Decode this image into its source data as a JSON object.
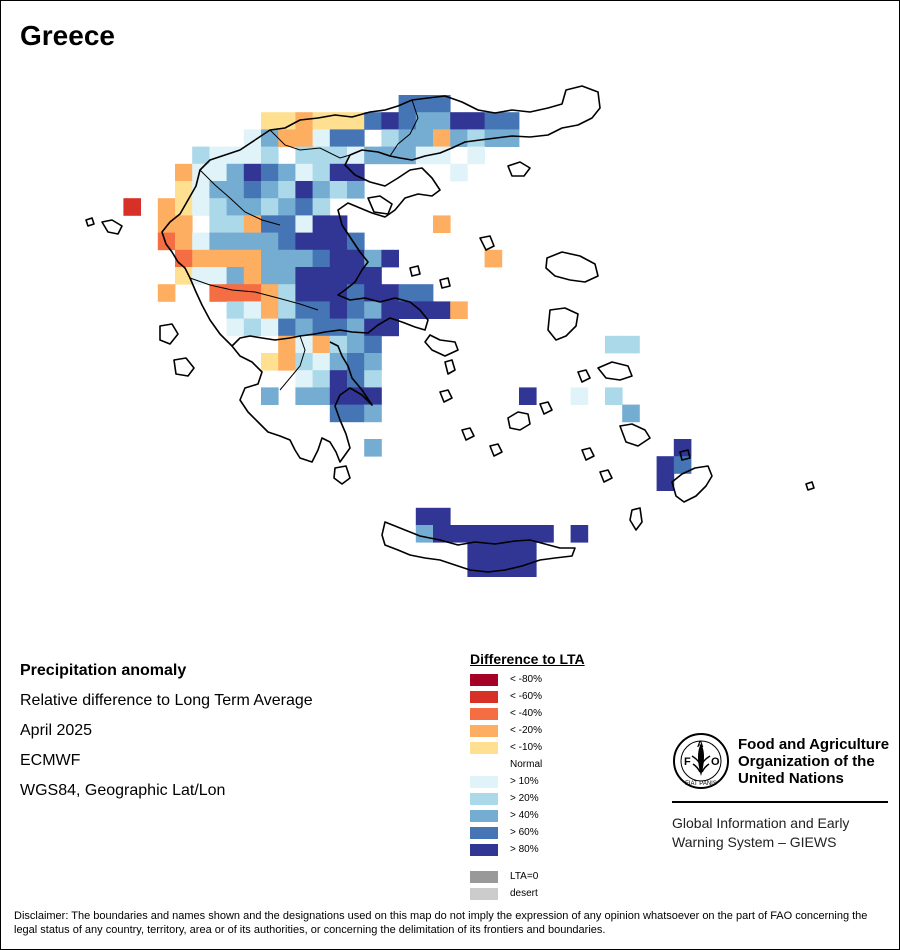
{
  "title": "Greece",
  "info": {
    "heading": "Precipitation anomaly",
    "line1": "Relative difference to Long Term Average",
    "line2": "April 2025",
    "line3": "ECMWF",
    "line4": "WGS84, Geographic Lat/Lon"
  },
  "legend": {
    "title": "Difference to LTA",
    "items": [
      {
        "label": "< -80%",
        "color": "#a50026"
      },
      {
        "label": "< -60%",
        "color": "#d73027"
      },
      {
        "label": "< -40%",
        "color": "#f46d43"
      },
      {
        "label": "< -20%",
        "color": "#fdae61"
      },
      {
        "label": "< -10%",
        "color": "#fee090"
      },
      {
        "label": "Normal",
        "color": "#ffffff"
      },
      {
        "label": "> 10%",
        "color": "#e0f3f8"
      },
      {
        "label": "> 20%",
        "color": "#abd9e9"
      },
      {
        "label": "> 40%",
        "color": "#74add1"
      },
      {
        "label": "> 60%",
        "color": "#4575b4"
      },
      {
        "label": "> 80%",
        "color": "#313695"
      }
    ],
    "extra": [
      {
        "label": "LTA=0",
        "color": "#999999"
      },
      {
        "label": "desert",
        "color": "#cccccc"
      }
    ]
  },
  "fao": {
    "name": "Food and Agriculture Organization of the United Nations",
    "logo_text": "FAO",
    "motto": "FIAT PANIS",
    "giews": "Global Information and Early Warning System – GIEWS"
  },
  "disclaimer": "Disclaimer: The boundaries and names shown and the designations used on this map do not imply the expression of any opinion whatsoever on the part of FAO concerning the legal status of any country, territory, area or of its authorities, or concerning the delimitation of its frontiers and boundaries.",
  "map_grid": [
    {
      "row": 0,
      "cells": [
        [
          18,
          9
        ],
        [
          19,
          9
        ],
        [
          20,
          9
        ]
      ]
    },
    {
      "row": 1,
      "cells": [
        [
          10,
          4
        ],
        [
          11,
          4
        ],
        [
          12,
          3
        ],
        [
          13,
          4
        ],
        [
          14,
          4
        ],
        [
          15,
          4
        ],
        [
          16,
          9
        ],
        [
          17,
          10
        ],
        [
          18,
          9
        ],
        [
          19,
          8
        ],
        [
          20,
          8
        ],
        [
          21,
          10
        ],
        [
          22,
          10
        ],
        [
          23,
          9
        ],
        [
          24,
          9
        ]
      ]
    },
    {
      "row": 2,
      "cells": [
        [
          9,
          6
        ],
        [
          10,
          8
        ],
        [
          11,
          3
        ],
        [
          12,
          3
        ],
        [
          13,
          6
        ],
        [
          14,
          9
        ],
        [
          15,
          9
        ],
        [
          16,
          5
        ],
        [
          17,
          7
        ],
        [
          18,
          8
        ],
        [
          19,
          8
        ],
        [
          20,
          3
        ],
        [
          21,
          8
        ],
        [
          22,
          7
        ],
        [
          23,
          8
        ],
        [
          24,
          8
        ]
      ]
    },
    {
      "row": 3,
      "cells": [
        [
          6,
          7
        ],
        [
          7,
          6
        ],
        [
          8,
          6
        ],
        [
          9,
          6
        ],
        [
          10,
          7
        ],
        [
          11,
          5
        ],
        [
          12,
          7
        ],
        [
          13,
          7
        ],
        [
          14,
          7
        ],
        [
          15,
          6
        ],
        [
          16,
          8
        ],
        [
          17,
          8
        ],
        [
          18,
          8
        ],
        [
          19,
          6
        ],
        [
          20,
          6
        ],
        [
          22,
          6
        ]
      ]
    },
    {
      "row": 4,
      "cells": [
        [
          5,
          3
        ],
        [
          6,
          6
        ],
        [
          7,
          6
        ],
        [
          8,
          8
        ],
        [
          9,
          10
        ],
        [
          10,
          9
        ],
        [
          11,
          8
        ],
        [
          12,
          6
        ],
        [
          13,
          7
        ],
        [
          14,
          10
        ],
        [
          15,
          10
        ],
        [
          21,
          6
        ]
      ]
    },
    {
      "row": 5,
      "cells": [
        [
          5,
          4
        ],
        [
          6,
          6
        ],
        [
          7,
          8
        ],
        [
          8,
          8
        ],
        [
          9,
          9
        ],
        [
          10,
          8
        ],
        [
          11,
          7
        ],
        [
          12,
          10
        ],
        [
          13,
          8
        ],
        [
          14,
          7
        ],
        [
          15,
          8
        ]
      ]
    },
    {
      "row": 6,
      "cells": [
        [
          2,
          1
        ],
        [
          4,
          3
        ],
        [
          5,
          4
        ],
        [
          6,
          6
        ],
        [
          7,
          7
        ],
        [
          8,
          8
        ],
        [
          9,
          8
        ],
        [
          10,
          7
        ],
        [
          11,
          8
        ],
        [
          12,
          9
        ],
        [
          13,
          7
        ]
      ]
    },
    {
      "row": 7,
      "cells": [
        [
          4,
          3
        ],
        [
          5,
          3
        ],
        [
          6,
          5
        ],
        [
          7,
          7
        ],
        [
          8,
          7
        ],
        [
          9,
          3
        ],
        [
          10,
          9
        ],
        [
          11,
          9
        ],
        [
          12,
          6
        ],
        [
          13,
          10
        ],
        [
          14,
          10
        ],
        [
          20,
          3
        ]
      ]
    },
    {
      "row": 8,
      "cells": [
        [
          4,
          2
        ],
        [
          5,
          3
        ],
        [
          6,
          6
        ],
        [
          7,
          8
        ],
        [
          8,
          8
        ],
        [
          9,
          8
        ],
        [
          10,
          8
        ],
        [
          11,
          9
        ],
        [
          12,
          10
        ],
        [
          13,
          10
        ],
        [
          14,
          10
        ],
        [
          15,
          9
        ]
      ]
    },
    {
      "row": 9,
      "cells": [
        [
          5,
          2
        ],
        [
          6,
          3
        ],
        [
          7,
          3
        ],
        [
          8,
          3
        ],
        [
          9,
          3
        ],
        [
          10,
          8
        ],
        [
          11,
          8
        ],
        [
          12,
          8
        ],
        [
          13,
          9
        ],
        [
          14,
          10
        ],
        [
          15,
          10
        ],
        [
          16,
          8
        ],
        [
          17,
          10
        ],
        [
          23,
          3
        ]
      ]
    },
    {
      "row": 10,
      "cells": [
        [
          5,
          4
        ],
        [
          6,
          6
        ],
        [
          7,
          6
        ],
        [
          8,
          8
        ],
        [
          9,
          3
        ],
        [
          10,
          8
        ],
        [
          11,
          8
        ],
        [
          12,
          10
        ],
        [
          13,
          10
        ],
        [
          14,
          10
        ],
        [
          15,
          10
        ],
        [
          16,
          10
        ]
      ]
    },
    {
      "row": 11,
      "cells": [
        [
          4,
          3
        ],
        [
          7,
          2
        ],
        [
          8,
          2
        ],
        [
          9,
          2
        ],
        [
          10,
          3
        ],
        [
          11,
          7
        ],
        [
          12,
          10
        ],
        [
          13,
          10
        ],
        [
          14,
          10
        ],
        [
          15,
          9
        ],
        [
          16,
          10
        ],
        [
          17,
          10
        ],
        [
          18,
          9
        ],
        [
          19,
          9
        ]
      ]
    },
    {
      "row": 12,
      "cells": [
        [
          8,
          7
        ],
        [
          9,
          6
        ],
        [
          10,
          3
        ],
        [
          11,
          7
        ],
        [
          12,
          9
        ],
        [
          13,
          9
        ],
        [
          14,
          10
        ],
        [
          15,
          9
        ],
        [
          16,
          8
        ],
        [
          17,
          10
        ],
        [
          18,
          10
        ],
        [
          19,
          10
        ],
        [
          20,
          10
        ],
        [
          21,
          3
        ]
      ]
    },
    {
      "row": 13,
      "cells": [
        [
          8,
          6
        ],
        [
          9,
          7
        ],
        [
          10,
          6
        ],
        [
          11,
          9
        ],
        [
          12,
          8
        ],
        [
          13,
          9
        ],
        [
          14,
          9
        ],
        [
          15,
          8
        ],
        [
          16,
          10
        ],
        [
          17,
          10
        ]
      ]
    },
    {
      "row": 14,
      "cells": [
        [
          11,
          3
        ],
        [
          12,
          6
        ],
        [
          13,
          3
        ],
        [
          14,
          7
        ],
        [
          15,
          8
        ],
        [
          16,
          9
        ],
        [
          30,
          7
        ],
        [
          31,
          7
        ]
      ]
    },
    {
      "row": 15,
      "cells": [
        [
          10,
          4
        ],
        [
          11,
          3
        ],
        [
          12,
          7
        ],
        [
          13,
          6
        ],
        [
          14,
          8
        ],
        [
          15,
          9
        ],
        [
          16,
          8
        ]
      ]
    },
    {
      "row": 16,
      "cells": [
        [
          12,
          6
        ],
        [
          13,
          7
        ],
        [
          14,
          10
        ],
        [
          15,
          9
        ],
        [
          16,
          7
        ]
      ]
    },
    {
      "row": 17,
      "cells": [
        [
          10,
          8
        ],
        [
          12,
          8
        ],
        [
          13,
          8
        ],
        [
          14,
          10
        ],
        [
          15,
          10
        ],
        [
          16,
          10
        ],
        [
          25,
          10
        ],
        [
          28,
          6
        ],
        [
          30,
          7
        ]
      ]
    },
    {
      "row": 18,
      "cells": [
        [
          14,
          9
        ],
        [
          15,
          9
        ],
        [
          16,
          8
        ],
        [
          31,
          8
        ]
      ]
    },
    {
      "row": 20,
      "cells": [
        [
          16,
          8
        ],
        [
          34,
          10
        ]
      ]
    },
    {
      "row": 21,
      "cells": [
        [
          33,
          10
        ],
        [
          34,
          9
        ]
      ]
    },
    {
      "row": 22,
      "cells": [
        [
          33,
          10
        ]
      ]
    },
    {
      "row": 24,
      "cells": [
        [
          19,
          10
        ],
        [
          20,
          10
        ]
      ]
    },
    {
      "row": 25,
      "cells": [
        [
          19,
          8
        ],
        [
          20,
          10
        ],
        [
          21,
          10
        ],
        [
          22,
          10
        ],
        [
          23,
          10
        ],
        [
          24,
          10
        ],
        [
          25,
          10
        ],
        [
          26,
          10
        ],
        [
          28,
          10
        ]
      ]
    },
    {
      "row": 26,
      "cells": [
        [
          22,
          10
        ],
        [
          23,
          10
        ],
        [
          24,
          10
        ],
        [
          25,
          10
        ]
      ]
    },
    {
      "row": 27,
      "cells": [
        [
          22,
          10
        ],
        [
          23,
          10
        ],
        [
          24,
          10
        ],
        [
          25,
          10
        ]
      ]
    }
  ],
  "coastlines": [
    "M255,140 L270,130 L285,128 L300,120 L318,118 L335,115 L352,117 L370,112 L385,110 L398,106 L412,100 L428,98 L445,96 L462,102 L478,110 L495,113 L512,110 L530,112 L548,108 L562,104 L566,90 L582,86 L598,92 L600,108 L592,118 L578,125 L562,128 L548,135 L530,137 L512,136 L496,138 L480,140 L465,142 L452,148 L440,153 L425,156 L412,160 L400,158 L390,156 L378,152 L362,150 L350,155 L345,165 L355,175 L370,182 L385,186 L398,178 L410,170 L422,168 L432,178 L440,190 L432,196 L418,194 L405,198 L395,210 L385,217 L372,213 L360,208 L348,203 L338,210 L342,225 L352,240 L360,252 L368,262 L362,270 L355,282 L345,290 L338,295 L350,300 L365,298 L380,302 L395,298 L410,302 L420,310 L428,320 L425,330 L415,327 L402,322 L390,318 L378,325 L368,333 L352,332 L340,330 L325,332 L315,334",
    "M315,334 L300,336 L290,338 L275,340 L262,338 L250,336 L240,338 L232,346 L240,356 L252,362 L262,372 L258,384 L245,388 L240,400 L248,412 L258,422 L268,432 L280,436 L290,440 L295,450 L300,458 L312,462 L318,450 L322,438 L330,442 L336,452 L340,462 L350,448 L346,434 L340,420 L335,406 L340,395 L350,388 L362,395 L372,405 L362,390 L352,378 L348,366 L342,356 L338,346 L330,342",
    "M232,346 L220,334 L210,320 L202,305 L196,292 L190,278 L185,268 L178,262 L172,252 L166,244 L162,232 L170,222 L180,214 L188,200 L196,186 L200,170 L210,160 L225,155 L240,150 L255,140",
    "M430,335 L440,340 L455,342 L458,350 L445,356 L432,350 L425,342 Z",
    "M385,522 L400,528 L420,536 L440,540 L458,545 L475,542 L495,544 L515,541 L530,540 L545,544 L560,548 L575,548 L572,556 L555,558 L540,560 L522,566 L505,570 L488,572 L470,570 L455,565 L440,560 L425,558 L410,555 L398,550 L385,545 L382,535 Z",
    "M672,482 L682,474 L695,468 L708,466 L712,476 L706,486 L696,496 L684,502 L676,496 Z",
    "M547,258 L562,252 L580,256 L595,264 L598,276 L585,282 L570,280 L555,276 L546,268 Z",
    "M550,310 L565,308 L578,314 L576,326 L566,336 L556,340 L548,330 Z",
    "M598,368 L612,362 L628,366 L632,376 L620,380 L606,378 Z",
    "M620,426 L632,424 L645,430 L650,438 L638,446 L626,442 Z",
    "M508,418 L518,412 L528,414 L530,424 L520,430 L510,428 Z",
    "M600,472 L608,470 L612,478 L604,482 Z",
    "M480,238 L490,236 L494,246 L486,250 Z",
    "M368,198 L380,196 L392,204 L388,214 L374,212 Z",
    "M102,222 L112,220 L122,226 L118,234 L108,232 Z",
    "M160,326 L172,324 L178,334 L170,344 L160,340 Z",
    "M174,360 L186,358 L194,368 L188,376 L176,374 Z",
    "M508,166 L520,162 L530,168 L524,176 L512,176 Z",
    "M335,468 L346,466 L350,478 L342,484 L334,478 Z",
    "M578,372 L586,370 L590,378 L582,382 Z",
    "M440,392 L448,390 L452,398 L444,402 Z",
    "M462,430 L470,428 L474,436 L466,440 Z",
    "M490,446 L498,444 L502,452 L494,456 Z",
    "M540,404 L548,402 L552,410 L544,414 Z",
    "M582,450 L590,448 L594,456 L586,460 Z",
    "M632,510 L640,508 L642,522 L636,530 L630,520 Z",
    "M445,362 L452,360 L455,370 L448,374 Z",
    "M410,268 L418,266 L420,274 L412,276 Z",
    "M440,280 L448,278 L450,286 L442,288 Z",
    "M86,220 L92,218 L94,224 L88,226 Z",
    "M806,484 L812,482 L814,488 L808,490 Z",
    "M680,452 L688,450 L690,458 L682,460 Z"
  ],
  "internal_borders": [
    "M270,130 L285,145 L300,150 L320,148 L340,158 L350,155",
    "M200,170 L215,185 L230,198 L245,212 L262,220 L280,225",
    "M190,278 L210,285 L232,290 L255,292 L278,298 L300,304 L318,310",
    "M412,100 L418,118 L410,134 L398,144 L390,156",
    "M300,336 L305,350 L300,366 L290,378 L280,390"
  ]
}
